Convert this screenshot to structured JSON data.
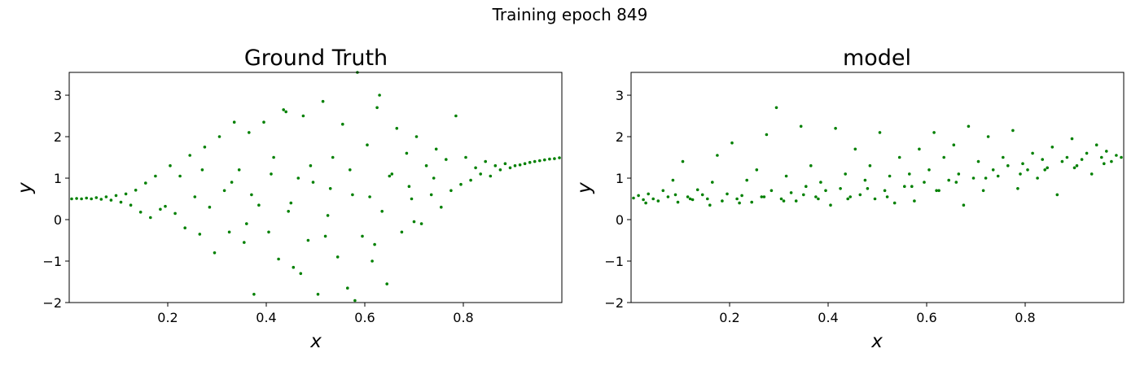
{
  "figure": {
    "suptitle": "Training epoch 849",
    "marker_color": "#008000"
  },
  "chart_data": [
    {
      "type": "scatter",
      "title": "Ground Truth",
      "xlabel": "x",
      "ylabel": "y",
      "xlim": [
        0.0,
        1.0
      ],
      "ylim": [
        -2.0,
        3.55
      ],
      "xticks": [
        0.2,
        0.4,
        0.6,
        0.8
      ],
      "yticks": [
        -2,
        -1,
        0,
        1,
        2,
        3
      ],
      "grid": false,
      "legend": "none",
      "series": [
        {
          "color": "#008000",
          "points": [
            [
              0.005,
              0.5
            ],
            [
              0.015,
              0.51
            ],
            [
              0.025,
              0.5
            ],
            [
              0.035,
              0.52
            ],
            [
              0.045,
              0.5
            ],
            [
              0.055,
              0.53
            ],
            [
              0.065,
              0.49
            ],
            [
              0.075,
              0.55
            ],
            [
              0.085,
              0.47
            ],
            [
              0.095,
              0.58
            ],
            [
              0.105,
              0.42
            ],
            [
              0.115,
              0.62
            ],
            [
              0.125,
              0.35
            ],
            [
              0.135,
              0.71
            ],
            [
              0.145,
              0.18
            ],
            [
              0.155,
              0.88
            ],
            [
              0.165,
              0.05
            ],
            [
              0.175,
              1.05
            ],
            [
              0.185,
              0.25
            ],
            [
              0.195,
              0.32
            ],
            [
              0.205,
              1.3
            ],
            [
              0.215,
              0.15
            ],
            [
              0.225,
              1.05
            ],
            [
              0.235,
              -0.2
            ],
            [
              0.245,
              1.55
            ],
            [
              0.255,
              0.55
            ],
            [
              0.265,
              -0.35
            ],
            [
              0.275,
              1.75
            ],
            [
              0.285,
              0.3
            ],
            [
              0.295,
              -0.8
            ],
            [
              0.305,
              2.0
            ],
            [
              0.315,
              0.7
            ],
            [
              0.325,
              -0.3
            ],
            [
              0.335,
              2.35
            ],
            [
              0.345,
              1.2
            ],
            [
              0.355,
              -0.55
            ],
            [
              0.365,
              2.1
            ],
            [
              0.375,
              -1.8
            ],
            [
              0.385,
              0.35
            ],
            [
              0.395,
              2.35
            ],
            [
              0.405,
              -0.3
            ],
            [
              0.415,
              1.5
            ],
            [
              0.425,
              -0.95
            ],
            [
              0.435,
              2.65
            ],
            [
              0.445,
              0.2
            ],
            [
              0.455,
              -1.15
            ],
            [
              0.465,
              1.0
            ],
            [
              0.475,
              2.5
            ],
            [
              0.485,
              -0.5
            ],
            [
              0.495,
              0.9
            ],
            [
              0.505,
              -1.8
            ],
            [
              0.515,
              2.85
            ],
            [
              0.525,
              0.1
            ],
            [
              0.535,
              1.5
            ],
            [
              0.545,
              -0.9
            ],
            [
              0.555,
              2.3
            ],
            [
              0.565,
              -1.65
            ],
            [
              0.575,
              0.6
            ],
            [
              0.585,
              3.55
            ],
            [
              0.595,
              -0.4
            ],
            [
              0.605,
              1.8
            ],
            [
              0.615,
              -1.0
            ],
            [
              0.625,
              2.7
            ],
            [
              0.635,
              0.2
            ],
            [
              0.645,
              -1.55
            ],
            [
              0.655,
              1.1
            ],
            [
              0.665,
              2.2
            ],
            [
              0.675,
              -0.3
            ],
            [
              0.685,
              1.6
            ],
            [
              0.695,
              0.5
            ],
            [
              0.705,
              2.0
            ],
            [
              0.715,
              -0.1
            ],
            [
              0.725,
              1.3
            ],
            [
              0.735,
              0.6
            ],
            [
              0.745,
              1.7
            ],
            [
              0.755,
              0.3
            ],
            [
              0.765,
              1.45
            ],
            [
              0.775,
              0.7
            ],
            [
              0.785,
              2.5
            ],
            [
              0.795,
              0.85
            ],
            [
              0.805,
              1.5
            ],
            [
              0.815,
              0.95
            ],
            [
              0.825,
              1.25
            ],
            [
              0.835,
              1.1
            ],
            [
              0.845,
              1.4
            ],
            [
              0.855,
              1.05
            ],
            [
              0.865,
              1.3
            ],
            [
              0.875,
              1.2
            ],
            [
              0.885,
              1.35
            ],
            [
              0.895,
              1.25
            ],
            [
              0.905,
              1.3
            ],
            [
              0.915,
              1.32
            ],
            [
              0.925,
              1.35
            ],
            [
              0.935,
              1.38
            ],
            [
              0.945,
              1.4
            ],
            [
              0.955,
              1.42
            ],
            [
              0.965,
              1.44
            ],
            [
              0.975,
              1.46
            ],
            [
              0.985,
              1.47
            ],
            [
              0.995,
              1.49
            ],
            [
              0.33,
              0.9
            ],
            [
              0.37,
              0.6
            ],
            [
              0.41,
              1.1
            ],
            [
              0.45,
              0.4
            ],
            [
              0.49,
              1.3
            ],
            [
              0.53,
              0.75
            ],
            [
              0.57,
              1.2
            ],
            [
              0.61,
              0.55
            ],
            [
              0.65,
              1.05
            ],
            [
              0.69,
              0.8
            ],
            [
              0.63,
              3.0
            ],
            [
              0.44,
              2.6
            ],
            [
              0.52,
              -0.4
            ],
            [
              0.58,
              -1.95
            ],
            [
              0.36,
              -0.1
            ],
            [
              0.62,
              -0.6
            ],
            [
              0.47,
              -1.3
            ],
            [
              0.7,
              -0.05
            ],
            [
              0.27,
              1.2
            ],
            [
              0.74,
              1.0
            ]
          ]
        }
      ]
    },
    {
      "type": "scatter",
      "title": "model",
      "xlabel": "x",
      "ylabel": "y",
      "xlim": [
        0.0,
        1.0
      ],
      "ylim": [
        -2.0,
        3.55
      ],
      "xticks": [
        0.2,
        0.4,
        0.6,
        0.8
      ],
      "yticks": [
        -2,
        -1,
        0,
        1,
        2,
        3
      ],
      "grid": false,
      "legend": "none",
      "series": [
        {
          "color": "#008000",
          "points": [
            [
              0.005,
              0.52
            ],
            [
              0.015,
              0.58
            ],
            [
              0.025,
              0.48
            ],
            [
              0.035,
              0.62
            ],
            [
              0.045,
              0.5
            ],
            [
              0.055,
              0.45
            ],
            [
              0.065,
              0.7
            ],
            [
              0.075,
              0.55
            ],
            [
              0.085,
              0.95
            ],
            [
              0.095,
              0.42
            ],
            [
              0.105,
              1.4
            ],
            [
              0.115,
              0.55
            ],
            [
              0.125,
              0.48
            ],
            [
              0.135,
              0.72
            ],
            [
              0.145,
              0.6
            ],
            [
              0.155,
              0.5
            ],
            [
              0.165,
              0.9
            ],
            [
              0.175,
              1.55
            ],
            [
              0.185,
              0.45
            ],
            [
              0.195,
              0.62
            ],
            [
              0.205,
              1.85
            ],
            [
              0.215,
              0.5
            ],
            [
              0.225,
              0.58
            ],
            [
              0.235,
              0.95
            ],
            [
              0.245,
              0.42
            ],
            [
              0.255,
              1.2
            ],
            [
              0.265,
              0.55
            ],
            [
              0.275,
              2.05
            ],
            [
              0.285,
              0.7
            ],
            [
              0.295,
              2.7
            ],
            [
              0.305,
              0.5
            ],
            [
              0.315,
              1.05
            ],
            [
              0.325,
              0.65
            ],
            [
              0.335,
              0.45
            ],
            [
              0.345,
              2.25
            ],
            [
              0.355,
              0.8
            ],
            [
              0.365,
              1.3
            ],
            [
              0.375,
              0.55
            ],
            [
              0.385,
              0.9
            ],
            [
              0.395,
              0.7
            ],
            [
              0.405,
              0.35
            ],
            [
              0.415,
              2.2
            ],
            [
              0.425,
              0.75
            ],
            [
              0.435,
              1.1
            ],
            [
              0.445,
              0.55
            ],
            [
              0.455,
              1.7
            ],
            [
              0.465,
              0.6
            ],
            [
              0.475,
              0.95
            ],
            [
              0.485,
              1.3
            ],
            [
              0.495,
              0.5
            ],
            [
              0.505,
              2.1
            ],
            [
              0.515,
              0.7
            ],
            [
              0.525,
              1.05
            ],
            [
              0.535,
              0.4
            ],
            [
              0.545,
              1.5
            ],
            [
              0.555,
              0.8
            ],
            [
              0.565,
              1.1
            ],
            [
              0.575,
              0.45
            ],
            [
              0.585,
              1.7
            ],
            [
              0.595,
              0.9
            ],
            [
              0.605,
              1.2
            ],
            [
              0.615,
              2.1
            ],
            [
              0.625,
              0.7
            ],
            [
              0.635,
              1.5
            ],
            [
              0.645,
              0.95
            ],
            [
              0.655,
              1.8
            ],
            [
              0.665,
              1.1
            ],
            [
              0.675,
              0.35
            ],
            [
              0.685,
              2.25
            ],
            [
              0.695,
              1.0
            ],
            [
              0.705,
              1.4
            ],
            [
              0.715,
              0.7
            ],
            [
              0.725,
              2.0
            ],
            [
              0.735,
              1.2
            ],
            [
              0.745,
              1.05
            ],
            [
              0.755,
              1.5
            ],
            [
              0.765,
              1.3
            ],
            [
              0.775,
              2.15
            ],
            [
              0.785,
              0.75
            ],
            [
              0.795,
              1.35
            ],
            [
              0.805,
              1.2
            ],
            [
              0.815,
              1.6
            ],
            [
              0.825,
              1.0
            ],
            [
              0.835,
              1.45
            ],
            [
              0.845,
              1.25
            ],
            [
              0.855,
              1.75
            ],
            [
              0.865,
              0.6
            ],
            [
              0.875,
              1.4
            ],
            [
              0.885,
              1.5
            ],
            [
              0.895,
              1.95
            ],
            [
              0.905,
              1.3
            ],
            [
              0.915,
              1.45
            ],
            [
              0.925,
              1.6
            ],
            [
              0.935,
              1.1
            ],
            [
              0.945,
              1.8
            ],
            [
              0.955,
              1.5
            ],
            [
              0.965,
              1.65
            ],
            [
              0.975,
              1.4
            ],
            [
              0.985,
              1.55
            ],
            [
              0.995,
              1.5
            ],
            [
              0.03,
              0.4
            ],
            [
              0.09,
              0.6
            ],
            [
              0.16,
              0.35
            ],
            [
              0.22,
              0.4
            ],
            [
              0.31,
              0.45
            ],
            [
              0.38,
              0.5
            ],
            [
              0.44,
              0.5
            ],
            [
              0.52,
              0.55
            ],
            [
              0.57,
              0.8
            ],
            [
              0.62,
              0.7
            ],
            [
              0.66,
              0.9
            ],
            [
              0.72,
              1.0
            ],
            [
              0.79,
              1.1
            ],
            [
              0.84,
              1.2
            ],
            [
              0.9,
              1.25
            ],
            [
              0.96,
              1.35
            ],
            [
              0.48,
              0.75
            ],
            [
              0.35,
              0.6
            ],
            [
              0.27,
              0.55
            ],
            [
              0.12,
              0.5
            ]
          ]
        }
      ]
    }
  ]
}
